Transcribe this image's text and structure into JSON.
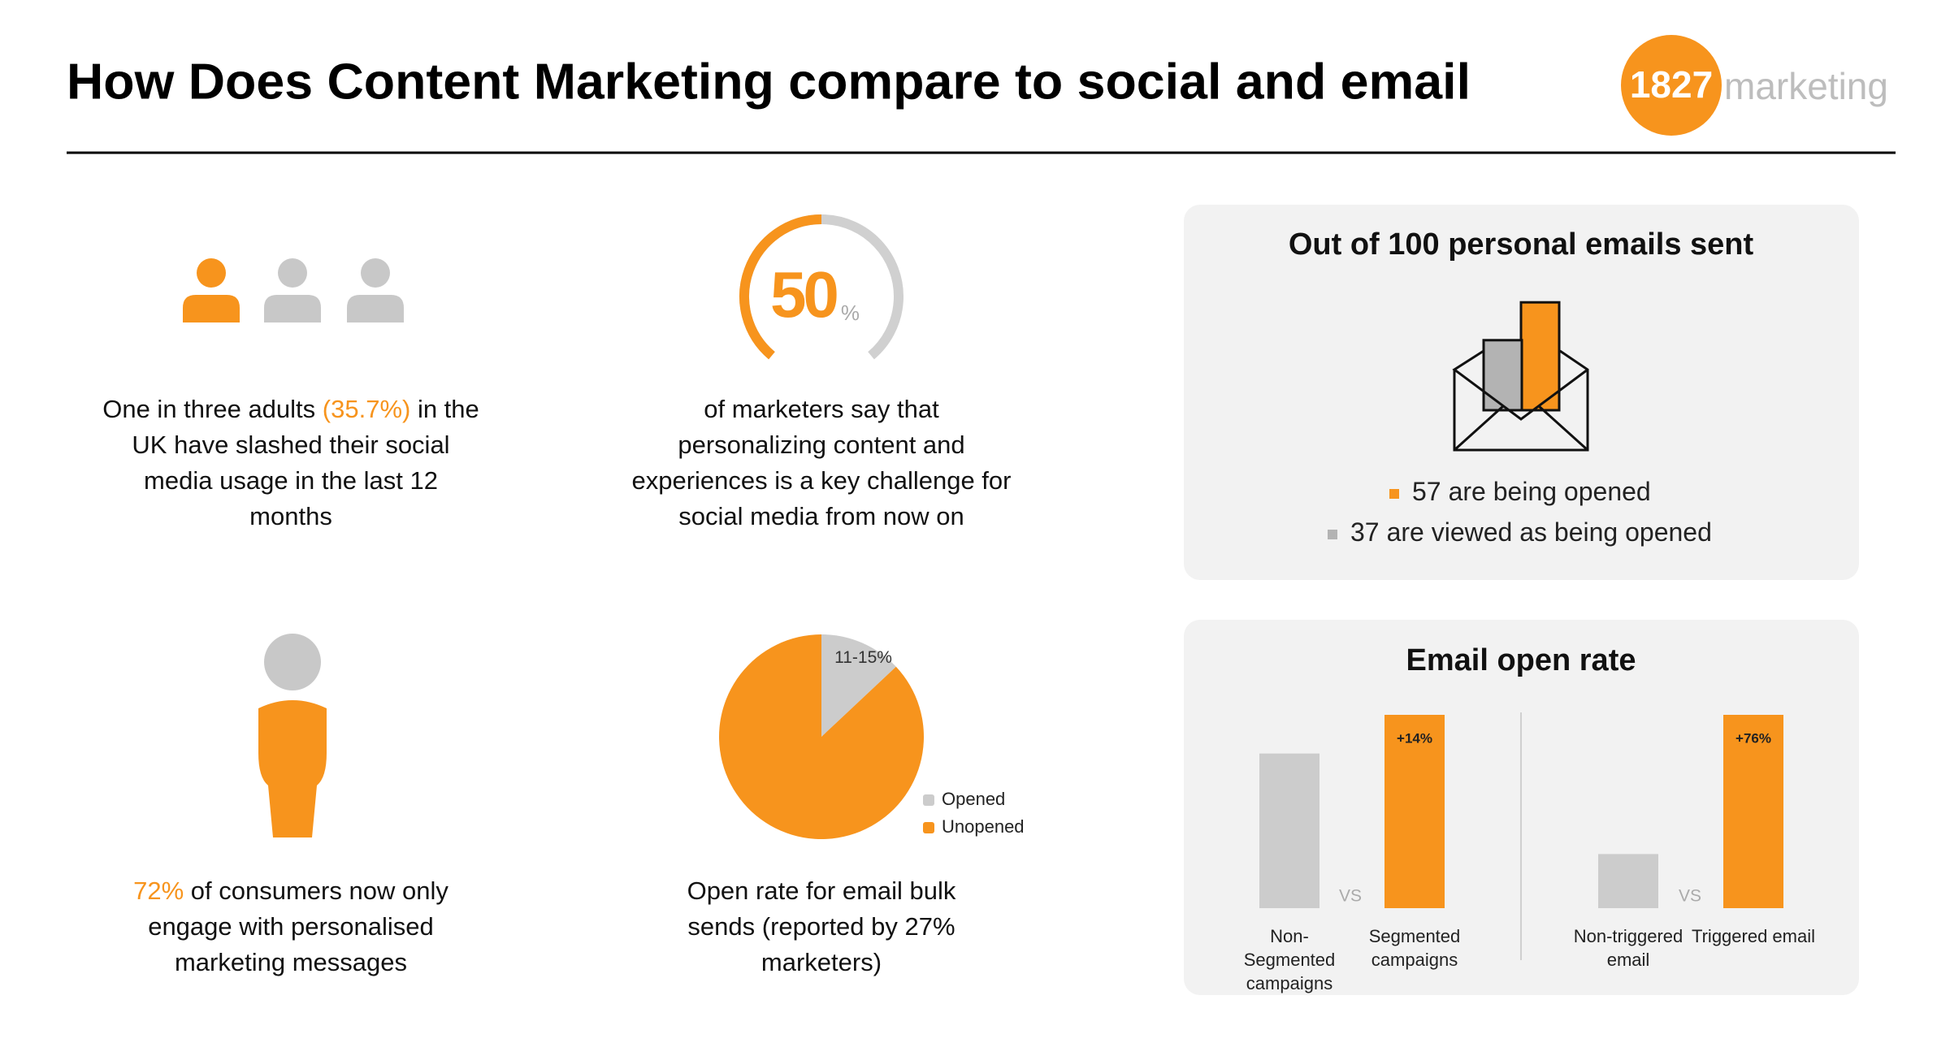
{
  "header": {
    "title": "How Does Content Marketing compare to social and email",
    "logo": {
      "mark": "1827",
      "word": "marketing"
    }
  },
  "social_stat": {
    "parts": [
      {
        "text": "One in three adults "
      },
      {
        "text": "(35.7%)",
        "highlight": true
      },
      {
        "text": " in the UK have slashed their social media usage in the last 12 months"
      }
    ]
  },
  "personalised_stat": {
    "parts": [
      {
        "text": "72%",
        "highlight": true
      },
      {
        "text": " of consumers now only engage with personalised marketing messages"
      }
    ]
  },
  "gauge_caption": "of marketers say that personalizing content and experiences is a key challenge for social media from now on",
  "pie_caption": "Open rate for email bulk sends (reported by 27% marketers)",
  "emails": {
    "title": "Out of 100 personal emails sent",
    "items": [
      {
        "value": 57,
        "text": "are being opened",
        "color": "#f7941d"
      },
      {
        "value": 37,
        "text": "are viewed as being opened",
        "color": "#b3b3b3"
      }
    ]
  },
  "chart_data": [
    {
      "type": "gauge",
      "value": 50,
      "unit": "%",
      "ylim": [
        0,
        100
      ],
      "color": "#f7941d",
      "track_color": "#d0d0d0"
    },
    {
      "type": "pie",
      "categories": [
        "Opened",
        "Unopened"
      ],
      "values": [
        13,
        87
      ],
      "value_labels": [
        "11-15%",
        null
      ],
      "colors": [
        "#cccccc",
        "#f7941d"
      ],
      "legend": "right"
    },
    {
      "type": "bar",
      "title": "Email open rate",
      "categories": [
        "Non-Segmented campaigns",
        "Segmented campaigns",
        "Non-triggered email",
        "Triggered email"
      ],
      "values": [
        80,
        100,
        28,
        100
      ],
      "ylim": [
        0,
        100
      ],
      "colors": [
        "#cccccc",
        "#f7941d",
        "#cccccc",
        "#f7941d"
      ],
      "annotations": [
        null,
        "+14%",
        null,
        "+76%"
      ],
      "separator": "VS"
    }
  ]
}
